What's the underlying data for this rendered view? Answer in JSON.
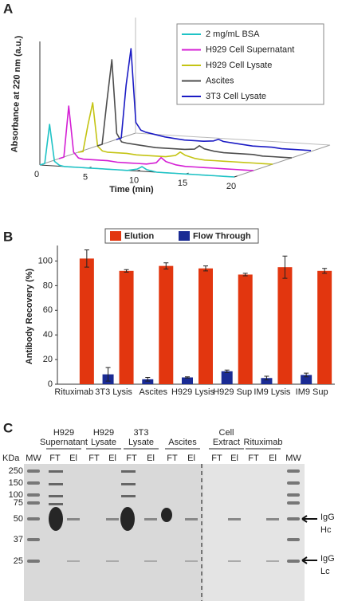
{
  "panel_labels": [
    "A",
    "B",
    "C"
  ],
  "chart_data": [
    {
      "type": "line",
      "xlabel": "Time (min)",
      "ylabel": "Absorbance at 220 nm (a.u.)",
      "x": [
        0,
        0.5,
        1,
        1.5,
        2,
        2.5,
        3,
        4,
        5,
        6,
        7,
        8,
        9,
        10,
        10.5,
        11,
        12,
        13,
        14,
        15,
        16,
        17,
        18,
        19,
        20
      ],
      "xlim": [
        0,
        20
      ],
      "xticks": [
        0,
        5,
        10,
        15,
        20
      ],
      "ylim": [
        0,
        1
      ],
      "legend": "upper right",
      "series": [
        {
          "name": "2 mg/mL BSA",
          "color": "#1fc3c6",
          "values": [
            0,
            0.02,
            0.45,
            0.05,
            0.01,
            0,
            0,
            0,
            0,
            0,
            0,
            0,
            0,
            0.02,
            0.05,
            0.02,
            0,
            0,
            0,
            0,
            0,
            0,
            0,
            0,
            0
          ]
        },
        {
          "name": "H929 Cell Supernatant",
          "color": "#d41ed4",
          "values": [
            0,
            0.02,
            0.58,
            0.08,
            0.02,
            0.01,
            0.01,
            0.01,
            0.01,
            0,
            0,
            0,
            0,
            0.02,
            0.08,
            0.04,
            0.01,
            0,
            0,
            0,
            0,
            0,
            0,
            0,
            0
          ]
        },
        {
          "name": "H929 Cell Lysate",
          "color": "#c4c414",
          "values": [
            0,
            0.01,
            0.3,
            0.55,
            0.08,
            0.03,
            0.02,
            0.02,
            0.02,
            0.01,
            0.01,
            0.01,
            0.01,
            0.03,
            0.07,
            0.04,
            0.01,
            0,
            0,
            0,
            0,
            0,
            0,
            0,
            0
          ]
        },
        {
          "name": "Ascites",
          "color": "#4d4d4d",
          "values": [
            0,
            0.02,
            0.5,
            0.95,
            0.15,
            0.06,
            0.05,
            0.04,
            0.03,
            0.02,
            0.02,
            0.02,
            0.02,
            0.03,
            0.07,
            0.04,
            0.02,
            0.01,
            0.01,
            0.01,
            0.01,
            0,
            0,
            0,
            0
          ]
        },
        {
          "name": "3T3 Cell Lysate",
          "color": "#1b1bc4",
          "values": [
            0,
            0.02,
            0.6,
            1.0,
            0.2,
            0.12,
            0.1,
            0.08,
            0.06,
            0.05,
            0.04,
            0.04,
            0.04,
            0.05,
            0.07,
            0.05,
            0.04,
            0.03,
            0.02,
            0.02,
            0.02,
            0.01,
            0.01,
            0.01,
            0.01
          ]
        }
      ]
    },
    {
      "type": "bar",
      "ylabel": "Antibody Recovery (%)",
      "categories": [
        "Rituximab",
        "3T3 Lysis",
        "Ascites",
        "H929 Lysis",
        "H929 Sup",
        "IM9 Lysis",
        "IM9 Sup"
      ],
      "ylim": [
        0,
        110
      ],
      "yticks": [
        0,
        20,
        40,
        60,
        80,
        100
      ],
      "legend": "top",
      "series": [
        {
          "name": "Elution",
          "color": "#e2360f",
          "values": [
            102,
            92,
            96,
            94,
            89,
            95,
            92
          ],
          "errors": [
            7,
            1,
            2.5,
            2,
            1,
            9,
            2
          ]
        },
        {
          "name": "Flow Through",
          "color": "#1a2b94",
          "values": [
            null,
            8,
            4,
            5.5,
            10.5,
            5,
            7.5
          ],
          "errors": [
            null,
            5.5,
            1.5,
            0.5,
            1,
            1.5,
            1.5
          ]
        }
      ]
    }
  ],
  "gel": {
    "unit": "KDa",
    "markers": [
      250,
      150,
      100,
      75,
      50,
      37,
      25
    ],
    "groups": [
      [
        "H929",
        "Supernatant"
      ],
      [
        "H929",
        "Lysate"
      ],
      [
        "3T3",
        "Lysate"
      ],
      [
        "Ascites"
      ],
      [
        "Cell",
        "Extract"
      ],
      [
        "Rituximab"
      ]
    ],
    "lanes": [
      "MW",
      "FT",
      "El",
      "FT",
      "El",
      "FT",
      "El",
      "FT",
      "El",
      "FT",
      "El",
      "FT",
      "El",
      "MW"
    ],
    "bands": [
      [
        "IgG",
        "Hc"
      ],
      [
        "IgG",
        "Lc"
      ]
    ]
  }
}
